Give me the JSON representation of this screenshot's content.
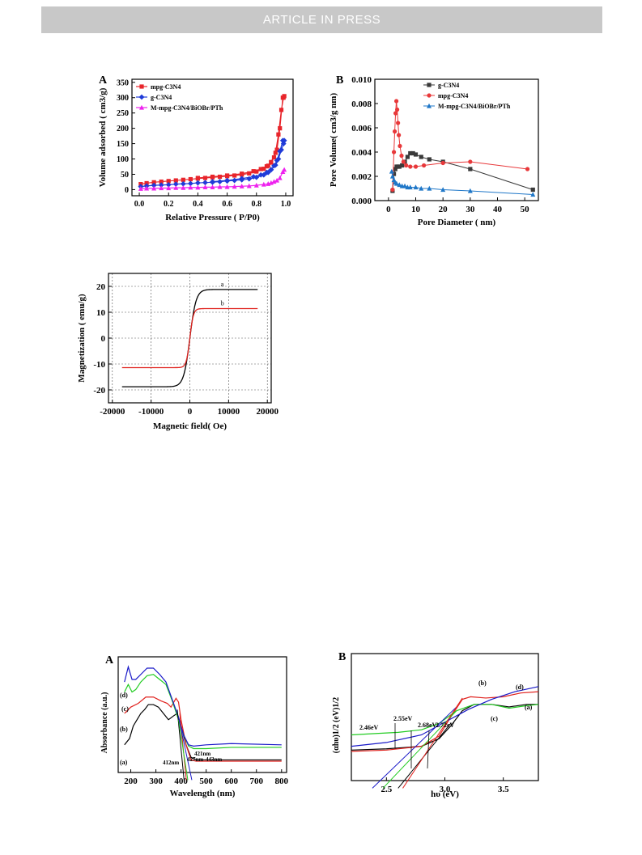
{
  "header": {
    "banner": "ARTICLE IN PRESS"
  },
  "chart_data": [
    {
      "panel": "A",
      "type": "line",
      "xlabel": "Relative Pressure ( P/P0)",
      "ylabel": "Volume adsorbed ( cm3/g)",
      "xlim": [
        0,
        1.05
      ],
      "ylim": [
        -20,
        360
      ],
      "xticks": [
        "0.0",
        "0.2",
        "0.4",
        "0.6",
        "0.8",
        "1.0"
      ],
      "yticks": [
        "0",
        "50",
        "100",
        "150",
        "200",
        "250",
        "300",
        "350"
      ],
      "legend": "top-left",
      "grid": false,
      "series": [
        {
          "name": "mpg-C3N4",
          "color": "#e8252b",
          "marker": "square",
          "x": [
            0.01,
            0.05,
            0.1,
            0.15,
            0.2,
            0.25,
            0.3,
            0.35,
            0.4,
            0.45,
            0.5,
            0.55,
            0.6,
            0.65,
            0.7,
            0.75,
            0.8,
            0.85,
            0.88,
            0.9,
            0.92,
            0.94,
            0.96,
            0.98,
            0.99,
            0.985,
            0.97,
            0.95,
            0.93,
            0.9,
            0.87,
            0.83,
            0.78,
            0.7,
            0.6,
            0.5,
            0.4
          ],
          "y": [
            18,
            21,
            24,
            26,
            28,
            30,
            32,
            34,
            36,
            38,
            40,
            42,
            44,
            46,
            49,
            53,
            59,
            68,
            78,
            88,
            105,
            130,
            200,
            300,
            305,
            300,
            260,
            180,
            120,
            90,
            76,
            67,
            60,
            52,
            46,
            42,
            38
          ]
        },
        {
          "name": "g-C3N4",
          "color": "#1f3bd8",
          "marker": "diamond",
          "x": [
            0.01,
            0.05,
            0.1,
            0.15,
            0.2,
            0.25,
            0.3,
            0.35,
            0.4,
            0.45,
            0.5,
            0.55,
            0.6,
            0.65,
            0.7,
            0.75,
            0.8,
            0.85,
            0.88,
            0.9,
            0.92,
            0.94,
            0.96,
            0.98,
            0.99,
            0.985,
            0.97,
            0.95,
            0.93,
            0.9,
            0.87,
            0.83,
            0.78,
            0.7,
            0.6,
            0.5
          ],
          "y": [
            10,
            12,
            14,
            15,
            16,
            18,
            19,
            20,
            22,
            23,
            24,
            26,
            28,
            30,
            32,
            35,
            40,
            48,
            56,
            65,
            78,
            95,
            125,
            160,
            160,
            150,
            130,
            100,
            80,
            65,
            56,
            48,
            42,
            36,
            30,
            26
          ]
        },
        {
          "name": "M-mpg-C3N4/BiOBr/PTh",
          "color": "#ee22ee",
          "marker": "triangle",
          "x": [
            0.01,
            0.05,
            0.1,
            0.15,
            0.2,
            0.25,
            0.3,
            0.35,
            0.4,
            0.45,
            0.5,
            0.55,
            0.6,
            0.65,
            0.7,
            0.75,
            0.8,
            0.85,
            0.88,
            0.9,
            0.92,
            0.94,
            0.96,
            0.98,
            0.99
          ],
          "y": [
            3,
            4,
            4,
            5,
            5,
            6,
            6,
            7,
            7,
            8,
            8,
            9,
            9,
            10,
            11,
            12,
            14,
            17,
            19,
            22,
            26,
            30,
            38,
            58,
            65
          ]
        }
      ]
    },
    {
      "panel": "B",
      "type": "line",
      "xlabel": "Pore Diameter ( nm)",
      "ylabel": "Pore Volume( cm3/g nm)",
      "xlim": [
        -5,
        55
      ],
      "ylim": [
        0,
        0.01
      ],
      "xticks": [
        "0",
        "10",
        "20",
        "30",
        "40",
        "50"
      ],
      "yticks": [
        "0.000",
        "0.002",
        "0.004",
        "0.006",
        "0.008",
        "0.010"
      ],
      "legend": "top-right",
      "grid": false,
      "series": [
        {
          "name": "g-C3N4",
          "color": "#3a3a3a",
          "marker": "square",
          "x": [
            1.5,
            2.0,
            2.5,
            3.0,
            3.5,
            4,
            5,
            6,
            7,
            8,
            9,
            10,
            12,
            15,
            20,
            30,
            53
          ],
          "y": [
            0.0008,
            0.0022,
            0.0026,
            0.0028,
            0.0028,
            0.0028,
            0.0029,
            0.0032,
            0.0036,
            0.0039,
            0.0039,
            0.0038,
            0.0036,
            0.0034,
            0.0032,
            0.0026,
            0.0009
          ]
        },
        {
          "name": "mpg-C3N4",
          "color": "#e8383a",
          "marker": "circle",
          "x": [
            1.5,
            2.0,
            2.3,
            2.6,
            2.9,
            3.2,
            3.5,
            3.8,
            4.2,
            4.8,
            5.5,
            6.5,
            8,
            10,
            13,
            20,
            30,
            51
          ],
          "y": [
            0.0009,
            0.004,
            0.0057,
            0.0072,
            0.0082,
            0.0075,
            0.0064,
            0.0054,
            0.0045,
            0.0037,
            0.0032,
            0.0029,
            0.0028,
            0.0028,
            0.0029,
            0.0031,
            0.0032,
            0.0026
          ]
        },
        {
          "name": "M-mpg-C3N4/BiOBr/PTh",
          "color": "#1f77c8",
          "marker": "triangle",
          "x": [
            1.2,
            1.5,
            2.0,
            2.5,
            3,
            4,
            5,
            6,
            7,
            8,
            10,
            12,
            15,
            20,
            30,
            53
          ],
          "y": [
            0.0024,
            0.002,
            0.0017,
            0.0015,
            0.0014,
            0.0013,
            0.0012,
            0.0012,
            0.0011,
            0.0011,
            0.0011,
            0.001,
            0.001,
            0.0009,
            0.0008,
            0.0005
          ]
        }
      ]
    },
    {
      "panel": "",
      "type": "line",
      "xlabel": "Magnetic field( Oe)",
      "ylabel": "Magnetization ( emu/g)",
      "xlim": [
        -21000,
        21000
      ],
      "ylim": [
        -25,
        25
      ],
      "xticks": [
        "-20000",
        "-10000",
        "0",
        "10000",
        "20000"
      ],
      "yticks": [
        "-20",
        "-10",
        "0",
        "10",
        "20"
      ],
      "grid": true,
      "series": [
        {
          "name": "a",
          "color": "#000000",
          "Ms": 18.8,
          "k": 1600
        },
        {
          "name": "b",
          "color": "#e0221e",
          "Ms": 11.4,
          "k": 900
        }
      ]
    },
    {
      "panel": "A",
      "type": "line",
      "xlabel": "Wavelength (nm)",
      "ylabel": "Absorbance (a.u.)",
      "xlim": [
        150,
        820
      ],
      "ylim": [
        0,
        1
      ],
      "xticks": [
        "200",
        "300",
        "400",
        "500",
        "600",
        "700",
        "800"
      ],
      "series_labels": [
        "(a)",
        "(b)",
        "(c)",
        "(d)"
      ],
      "annotations": [
        "412nm",
        "421nm",
        "427nm",
        "443nm"
      ],
      "series": [
        {
          "name": "(a)",
          "color": "#000000",
          "x": [
            175,
            195,
            210,
            225,
            240,
            255,
            270,
            290,
            310,
            330,
            350,
            370,
            385,
            400,
            420,
            440,
            460,
            500,
            600,
            800
          ],
          "y": [
            0.3,
            0.35,
            0.45,
            0.5,
            0.55,
            0.58,
            0.62,
            0.62,
            0.6,
            0.55,
            0.5,
            0.53,
            0.55,
            0.45,
            0.3,
            0.2,
            0.18,
            0.18,
            0.18,
            0.18
          ]
        },
        {
          "name": "(b)",
          "color": "#e0221e",
          "x": [
            175,
            200,
            230,
            260,
            290,
            320,
            345,
            360,
            380,
            390,
            400,
            420,
            440,
            460,
            500,
            600,
            800
          ],
          "y": [
            0.55,
            0.6,
            0.63,
            0.68,
            0.68,
            0.65,
            0.63,
            0.6,
            0.67,
            0.64,
            0.5,
            0.3,
            0.18,
            0.17,
            0.17,
            0.17,
            0.17
          ]
        },
        {
          "name": "(c)",
          "color": "#22cc22",
          "x": [
            175,
            190,
            205,
            220,
            240,
            265,
            290,
            315,
            340,
            365,
            390,
            410,
            430,
            450,
            500,
            600,
            800
          ],
          "y": [
            0.72,
            0.78,
            0.72,
            0.74,
            0.8,
            0.85,
            0.86,
            0.82,
            0.78,
            0.65,
            0.5,
            0.38,
            0.29,
            0.27,
            0.27,
            0.28,
            0.28
          ]
        },
        {
          "name": "(d)",
          "color": "#1a1ac8",
          "x": [
            175,
            190,
            205,
            220,
            240,
            265,
            290,
            315,
            340,
            365,
            390,
            410,
            430,
            450,
            500,
            600,
            800
          ],
          "y": [
            0.8,
            0.92,
            0.82,
            0.82,
            0.86,
            0.91,
            0.91,
            0.86,
            0.8,
            0.66,
            0.52,
            0.38,
            0.3,
            0.29,
            0.3,
            0.31,
            0.3
          ]
        }
      ]
    },
    {
      "panel": "B",
      "type": "line",
      "xlabel": "hυ (eV)",
      "ylabel": "(αhυ)1/2 (eV)1/2",
      "xlim": [
        2.2,
        3.8
      ],
      "ylim": [
        0,
        1
      ],
      "xticks": [
        "2.5",
        "3.0",
        "3.5"
      ],
      "series_labels": [
        "(a)",
        "(b)",
        "(c)",
        "(d)"
      ],
      "annotations": [
        "2.46eV",
        "2.55eV",
        "2.68eV",
        "2.72eV"
      ],
      "series": [
        {
          "name": "(a)",
          "color": "#000000",
          "x": [
            2.2,
            2.5,
            2.8,
            2.95,
            3.05,
            3.15,
            3.25,
            3.4,
            3.55,
            3.7,
            3.8
          ],
          "y": [
            0.24,
            0.25,
            0.27,
            0.33,
            0.43,
            0.55,
            0.6,
            0.6,
            0.58,
            0.6,
            0.6
          ]
        },
        {
          "name": "(b)",
          "color": "#e0221e",
          "x": [
            2.2,
            2.5,
            2.8,
            2.95,
            3.05,
            3.15,
            3.22,
            3.35,
            3.5,
            3.65,
            3.8
          ],
          "y": [
            0.23,
            0.24,
            0.27,
            0.35,
            0.5,
            0.64,
            0.66,
            0.65,
            0.66,
            0.69,
            0.7
          ]
        },
        {
          "name": "(c)",
          "color": "#22cc22",
          "x": [
            2.2,
            2.4,
            2.6,
            2.8,
            2.95,
            3.1,
            3.25,
            3.4,
            3.55,
            3.7,
            3.8
          ],
          "y": [
            0.36,
            0.37,
            0.38,
            0.4,
            0.45,
            0.55,
            0.6,
            0.6,
            0.57,
            0.59,
            0.6
          ]
        },
        {
          "name": "(d)",
          "color": "#1a1ac8",
          "x": [
            2.2,
            2.5,
            2.8,
            3.0,
            3.2,
            3.4,
            3.6,
            3.8
          ],
          "y": [
            0.27,
            0.3,
            0.36,
            0.46,
            0.56,
            0.64,
            0.7,
            0.74
          ]
        }
      ]
    }
  ]
}
